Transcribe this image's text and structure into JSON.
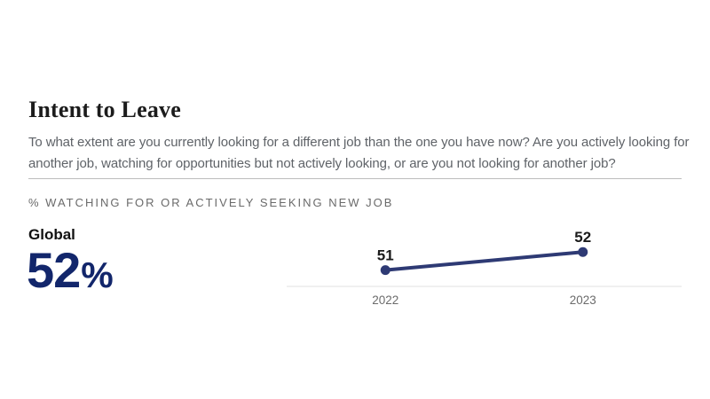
{
  "colors": {
    "accent_navy": "#12266b",
    "line": "#2e3a74",
    "data_label": "#1a1a1a",
    "axis_line": "#ececec",
    "tick_label": "#6b6b6b",
    "question_text": "#5f6368",
    "eyebrow_text": "#6a6a6a"
  },
  "page": {
    "title": "Intent to Leave",
    "question": "To what extent are you currently looking for a different job than the one you have now? Are you actively looking for another job, watching for opportunities but not actively looking, or are you not looking for another job?",
    "metric_label": "% WATCHING FOR OR ACTIVELY SEEKING NEW JOB"
  },
  "stat": {
    "label": "Global",
    "value_number": "52",
    "value_suffix": "%"
  },
  "chart_data": {
    "type": "line",
    "title": "% watching for or actively seeking new job",
    "categories": [
      "2022",
      "2023"
    ],
    "series": [
      {
        "name": "Global",
        "values": [
          51,
          52
        ]
      }
    ],
    "xlabel": "",
    "ylabel": "",
    "data_labels": true,
    "grid": false,
    "legend": "none",
    "ylim": [
      48,
      54
    ]
  }
}
